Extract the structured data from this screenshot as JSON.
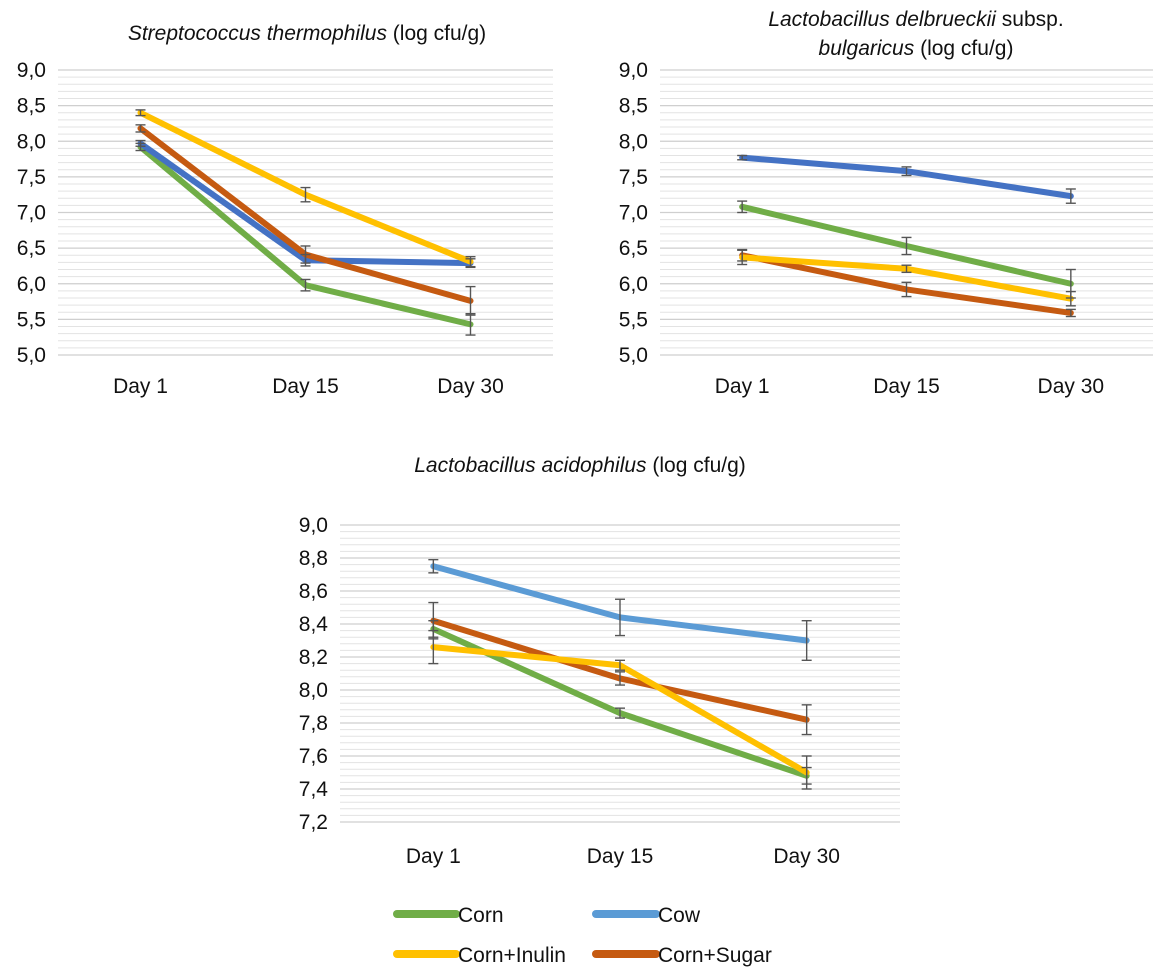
{
  "chart_data": [
    {
      "type": "line",
      "title": {
        "species": "Streptococcus thermophilus",
        "unit": " (log cfu/g)"
      },
      "categories": [
        "Day 1",
        "Day 15",
        "Day 30"
      ],
      "ylim": [
        5.0,
        9.0
      ],
      "yticks": [
        "5,0",
        "5,5",
        "6,0",
        "6,5",
        "7,0",
        "7,5",
        "8,0",
        "8,5",
        "9,0"
      ],
      "series": [
        {
          "name": "Corn",
          "values": [
            7.92,
            5.98,
            5.43
          ],
          "errors": [
            0.05,
            0.08,
            0.15
          ]
        },
        {
          "name": "Cow",
          "values": [
            7.97,
            6.33,
            6.29
          ],
          "errors": [
            0.04,
            0.08,
            0.06
          ]
        },
        {
          "name": "Corn+Inulin",
          "values": [
            8.4,
            7.25,
            6.31
          ],
          "errors": [
            0.04,
            0.1,
            0.07
          ]
        },
        {
          "name": "Corn+Sugar",
          "values": [
            8.18,
            6.41,
            5.76
          ],
          "errors": [
            0.05,
            0.12,
            0.2
          ]
        }
      ]
    },
    {
      "type": "line",
      "title": {
        "species": "Lactobacillus delbrueckii",
        "mid": " subsp.",
        "species2": "bulgaricus",
        "unit": " (log cfu/g)"
      },
      "categories": [
        "Day 1",
        "Day 15",
        "Day 30"
      ],
      "ylim": [
        5.0,
        9.0
      ],
      "yticks": [
        "5,0",
        "5,5",
        "6,0",
        "6,5",
        "7,0",
        "7,5",
        "8,0",
        "8,5",
        "9,0"
      ],
      "series": [
        {
          "name": "Corn",
          "values": [
            7.08,
            6.53,
            6.0
          ],
          "errors": [
            0.08,
            0.12,
            0.2
          ]
        },
        {
          "name": "Cow",
          "values": [
            7.77,
            7.58,
            7.23
          ],
          "errors": [
            0.03,
            0.06,
            0.1
          ]
        },
        {
          "name": "Corn+Inulin",
          "values": [
            6.37,
            6.21,
            5.79
          ],
          "errors": [
            0.1,
            0.05,
            0.1
          ]
        },
        {
          "name": "Corn+Sugar",
          "values": [
            6.4,
            5.92,
            5.59
          ],
          "errors": [
            0.08,
            0.1,
            0.05
          ]
        }
      ]
    },
    {
      "type": "line",
      "title": {
        "species": "Lactobacillus acidophilus",
        "unit": " (log cfu/g)"
      },
      "categories": [
        "Day 1",
        "Day 15",
        "Day 30"
      ],
      "ylim": [
        7.2,
        9.0
      ],
      "yticks": [
        "7,2",
        "7,4",
        "7,6",
        "7,8",
        "8,0",
        "8,2",
        "8,4",
        "8,6",
        "8,8",
        "9,0"
      ],
      "series": [
        {
          "name": "Corn",
          "values": [
            8.37,
            7.86,
            7.48
          ],
          "errors": [
            0.05,
            0.03,
            0.05
          ]
        },
        {
          "name": "Cow",
          "values": [
            8.75,
            8.44,
            8.3
          ],
          "errors": [
            0.04,
            0.11,
            0.12
          ]
        },
        {
          "name": "Corn+Inulin",
          "values": [
            8.26,
            8.15,
            7.5
          ],
          "errors": [
            0.1,
            0.03,
            0.1
          ]
        },
        {
          "name": "Corn+Sugar",
          "values": [
            8.42,
            8.07,
            7.82
          ],
          "errors": [
            0.11,
            0.04,
            0.09
          ]
        }
      ]
    }
  ],
  "legend": [
    {
      "label": "Corn",
      "color": "#70ad47"
    },
    {
      "label": "Cow",
      "color": "#5b9bd5"
    },
    {
      "label": "Corn+Inulin",
      "color": "#ffc000"
    },
    {
      "label": "Corn+Sugar",
      "color": "#c55a11"
    }
  ],
  "colors": {
    "chart1": {
      "Corn": "#70ad47",
      "Cow": "#4472c4",
      "Corn+Inulin": "#ffc000",
      "Corn+Sugar": "#c55a11"
    },
    "chart2": {
      "Corn": "#70ad47",
      "Cow": "#4472c4",
      "Corn+Inulin": "#ffc000",
      "Corn+Sugar": "#c55a11"
    },
    "chart3": {
      "Corn": "#70ad47",
      "Cow": "#5b9bd5",
      "Corn+Inulin": "#ffc000",
      "Corn+Sugar": "#c55a11"
    }
  }
}
